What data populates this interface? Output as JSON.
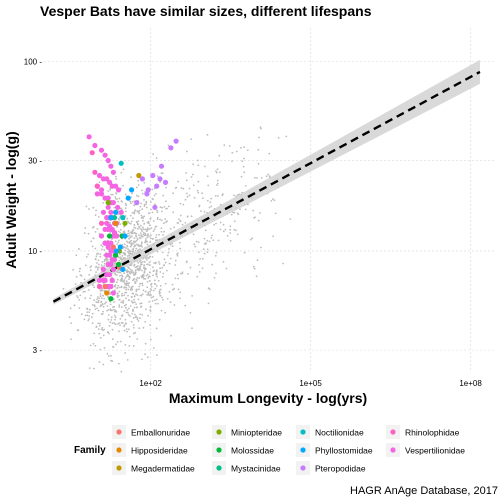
{
  "chart_data": {
    "type": "scatter",
    "title": "Vesper Bats have similar sizes, different lifespans",
    "xlabel": "Maximum Longevity - log(yrs)",
    "ylabel": "Adult Weight - log(g)",
    "caption": "HAGR AnAge Database, 2017",
    "x_scale": "log10",
    "y_scale": "log10",
    "xlim": [
      1.0,
      300000000
    ],
    "ylim": [
      2.3,
      150
    ],
    "x_ticks": [
      {
        "value": 100,
        "label": "1e+02"
      },
      {
        "value": 100000,
        "label": "1e+05"
      },
      {
        "value": 100000000,
        "label": "1e+08"
      }
    ],
    "y_ticks": [
      {
        "value": 3,
        "label": "3 -"
      },
      {
        "value": 10,
        "label": "10 -"
      },
      {
        "value": 30,
        "label": "30 -"
      },
      {
        "value": 100,
        "label": "100 -"
      }
    ],
    "grid": true,
    "legend": {
      "title": "Family",
      "placement": "bottom",
      "entries": [
        {
          "label": "Emballonuridae",
          "color": "#F8766D"
        },
        {
          "label": "Hipposideridae",
          "color": "#E58700"
        },
        {
          "label": "Megadermatidae",
          "color": "#C09B00"
        },
        {
          "label": "Miniopteridae",
          "color": "#7CAE00"
        },
        {
          "label": "Molossidae",
          "color": "#00BA38"
        },
        {
          "label": "Mystacinidae",
          "color": "#00C08B"
        },
        {
          "label": "Noctilionidae",
          "color": "#00BFC4"
        },
        {
          "label": "Phyllostomidae",
          "color": "#00A9FF"
        },
        {
          "label": "Pteropodidae",
          "color": "#C77CFF"
        },
        {
          "label": "Rhinolophidae",
          "color": "#FF61C3"
        },
        {
          "label": "Vespertilionidae",
          "color": "#F564E3"
        }
      ]
    },
    "background_points_color": "#bdbdbd",
    "trend_line": {
      "style": "dashed",
      "color": "#000000",
      "x": [
        1.5,
        150000000
      ],
      "y": [
        5.4,
        88
      ],
      "confidence_band_color": "#d0d0d0"
    },
    "series": [
      {
        "name": "Vespertilionidae",
        "color": "#F564E3",
        "x": [
          7,
          9,
          12,
          14,
          16,
          18,
          20,
          11,
          13,
          15,
          17,
          19,
          22,
          25,
          10,
          12,
          14,
          16,
          18,
          20,
          24,
          28,
          13,
          15,
          17,
          19,
          21,
          23,
          14,
          16,
          18,
          20,
          22,
          12,
          14,
          16,
          18,
          20,
          22,
          15,
          17,
          19,
          21,
          16,
          18,
          20,
          13,
          15,
          17,
          19,
          14,
          16,
          18,
          20,
          11,
          13,
          15,
          17,
          14,
          16,
          18,
          15,
          17,
          19,
          21,
          23,
          10,
          12,
          16,
          18
        ],
        "y": [
          40,
          36,
          34,
          32,
          30,
          28,
          26,
          25,
          24,
          24,
          23,
          22,
          22,
          21,
          20,
          20,
          19,
          19,
          18,
          18,
          17,
          16,
          16,
          15,
          15,
          15,
          14,
          14,
          13,
          13,
          13,
          12,
          12,
          12,
          11,
          11,
          11,
          10,
          10,
          9.5,
          9.5,
          9,
          9,
          8.5,
          8.5,
          8,
          8,
          7.5,
          7.5,
          7,
          7,
          6.5,
          6.5,
          6,
          7,
          7,
          6.5,
          6.5,
          11,
          10.5,
          10,
          14,
          13.5,
          13,
          12.5,
          12,
          22,
          21,
          17,
          16
        ]
      },
      {
        "name": "Rhinolophidae",
        "color": "#FF61C3",
        "x": [
          8,
          10,
          12,
          9,
          11
        ],
        "y": [
          33,
          22,
          14,
          26,
          6.5
        ]
      },
      {
        "name": "Emballonuridae",
        "color": "#F8766D",
        "x": [
          14,
          20,
          26
        ],
        "y": [
          6.5,
          10.5,
          8.2
        ]
      },
      {
        "name": "Hipposideridae",
        "color": "#E58700",
        "x": [
          15,
          22
        ],
        "y": [
          6,
          14
        ]
      },
      {
        "name": "Megadermatidae",
        "color": "#C09B00",
        "x": [
          60
        ],
        "y": [
          25
        ]
      },
      {
        "name": "Miniopteridae",
        "color": "#7CAE00",
        "x": [
          16,
          26,
          33
        ],
        "y": [
          18,
          10,
          14
        ]
      },
      {
        "name": "Molossidae",
        "color": "#00BA38",
        "x": [
          17,
          18,
          22,
          25,
          29
        ],
        "y": [
          12,
          5.6,
          9.5,
          8.5,
          12
        ]
      },
      {
        "name": "Mystacinidae",
        "color": "#00C08B",
        "x": [
          21
        ],
        "y": [
          15
        ]
      },
      {
        "name": "Noctilionidae",
        "color": "#00BFC4",
        "x": [
          28,
          30
        ],
        "y": [
          29,
          15
        ]
      },
      {
        "name": "Phyllostomidae",
        "color": "#00A9FF",
        "x": [
          18,
          23,
          27,
          30,
          33,
          38,
          44,
          22
        ],
        "y": [
          15,
          10,
          10.5,
          8,
          12,
          19,
          21,
          16
        ]
      },
      {
        "name": "Pteropodidae",
        "color": "#C77CFF",
        "x": [
          55,
          70,
          90,
          110,
          130,
          150,
          190,
          240,
          300,
          85,
          120,
          160
        ],
        "y": [
          18,
          24,
          21,
          25,
          22,
          24,
          23,
          35,
          38,
          20,
          17,
          28
        ]
      }
    ]
  }
}
